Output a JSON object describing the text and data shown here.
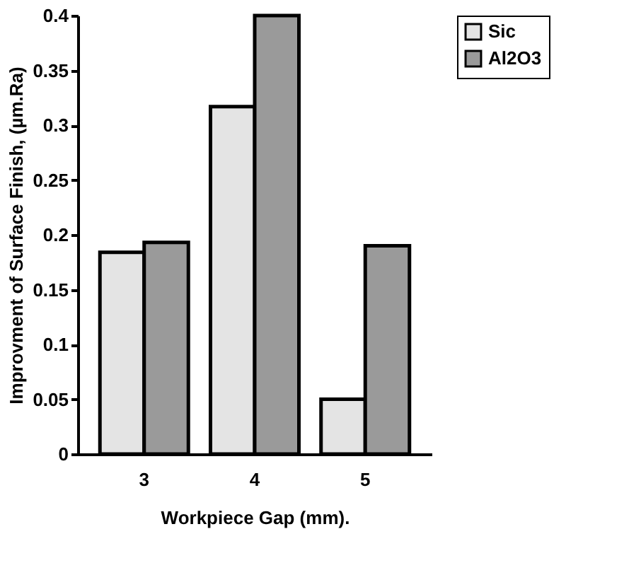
{
  "chart_data": {
    "type": "bar",
    "xlabel": "Workpiece Gap (mm).",
    "ylabel": "Improvment of Surface Finish,  (µm.Ra)",
    "categories": [
      "3",
      "4",
      "5"
    ],
    "series": [
      {
        "name": "Sic",
        "color": "#e4e4e4",
        "values": [
          0.184,
          0.317,
          0.05
        ]
      },
      {
        "name": "Al2O3",
        "color": "#9a9a9a",
        "values": [
          0.193,
          0.4,
          0.19
        ]
      }
    ],
    "ylim": [
      0,
      0.4
    ],
    "yticks": [
      0,
      0.05,
      0.1,
      0.15,
      0.2,
      0.25,
      0.3,
      0.35,
      0.4
    ],
    "grid": false,
    "legend": "right"
  }
}
